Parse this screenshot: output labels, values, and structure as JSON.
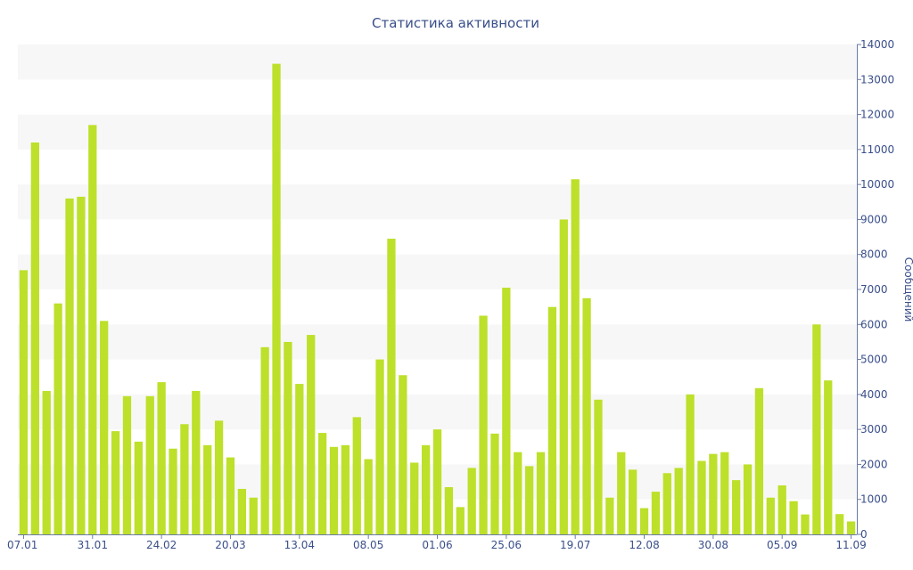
{
  "chart_data": {
    "type": "bar",
    "title": "Статистика активности",
    "ylabel": "Сообщений",
    "ylim": [
      0,
      14000
    ],
    "yticks": [
      0,
      1000,
      2000,
      3000,
      4000,
      5000,
      6000,
      7000,
      8000,
      9000,
      10000,
      11000,
      12000,
      13000,
      14000
    ],
    "y_axis_side": "right",
    "xticks": [
      "07.01",
      "31.01",
      "24.02",
      "20.03",
      "13.04",
      "08.05",
      "01.06",
      "25.06",
      "19.07",
      "12.08",
      "30.08",
      "05.09",
      "11.09"
    ],
    "xtick_bar_index": [
      0,
      6,
      12,
      18,
      24,
      30,
      36,
      42,
      48,
      54,
      60,
      66,
      72
    ],
    "values": [
      7550,
      11200,
      4100,
      6600,
      9600,
      9650,
      11700,
      6100,
      2950,
      3950,
      2650,
      3950,
      4350,
      2450,
      3150,
      4100,
      2550,
      3250,
      2200,
      1300,
      1050,
      5350,
      13450,
      5500,
      4300,
      5700,
      2900,
      2500,
      2550,
      3350,
      2150,
      5000,
      8450,
      4550,
      2050,
      2550,
      3000,
      1350,
      780,
      1900,
      6250,
      2880,
      7050,
      2350,
      1950,
      2350,
      6500,
      9000,
      10150,
      6750,
      3850,
      1050,
      2350,
      1850,
      750,
      1220,
      1750,
      1900,
      4000,
      2100,
      2300,
      2350,
      1550,
      2000,
      4180,
      1050,
      1400,
      950,
      570,
      6000,
      4400,
      580,
      370
    ],
    "bar_color": "#bde02a",
    "text_color": "#3a4f8a",
    "band_color": "#f7f7f7",
    "grid": "alternating bands",
    "legend": "none"
  }
}
